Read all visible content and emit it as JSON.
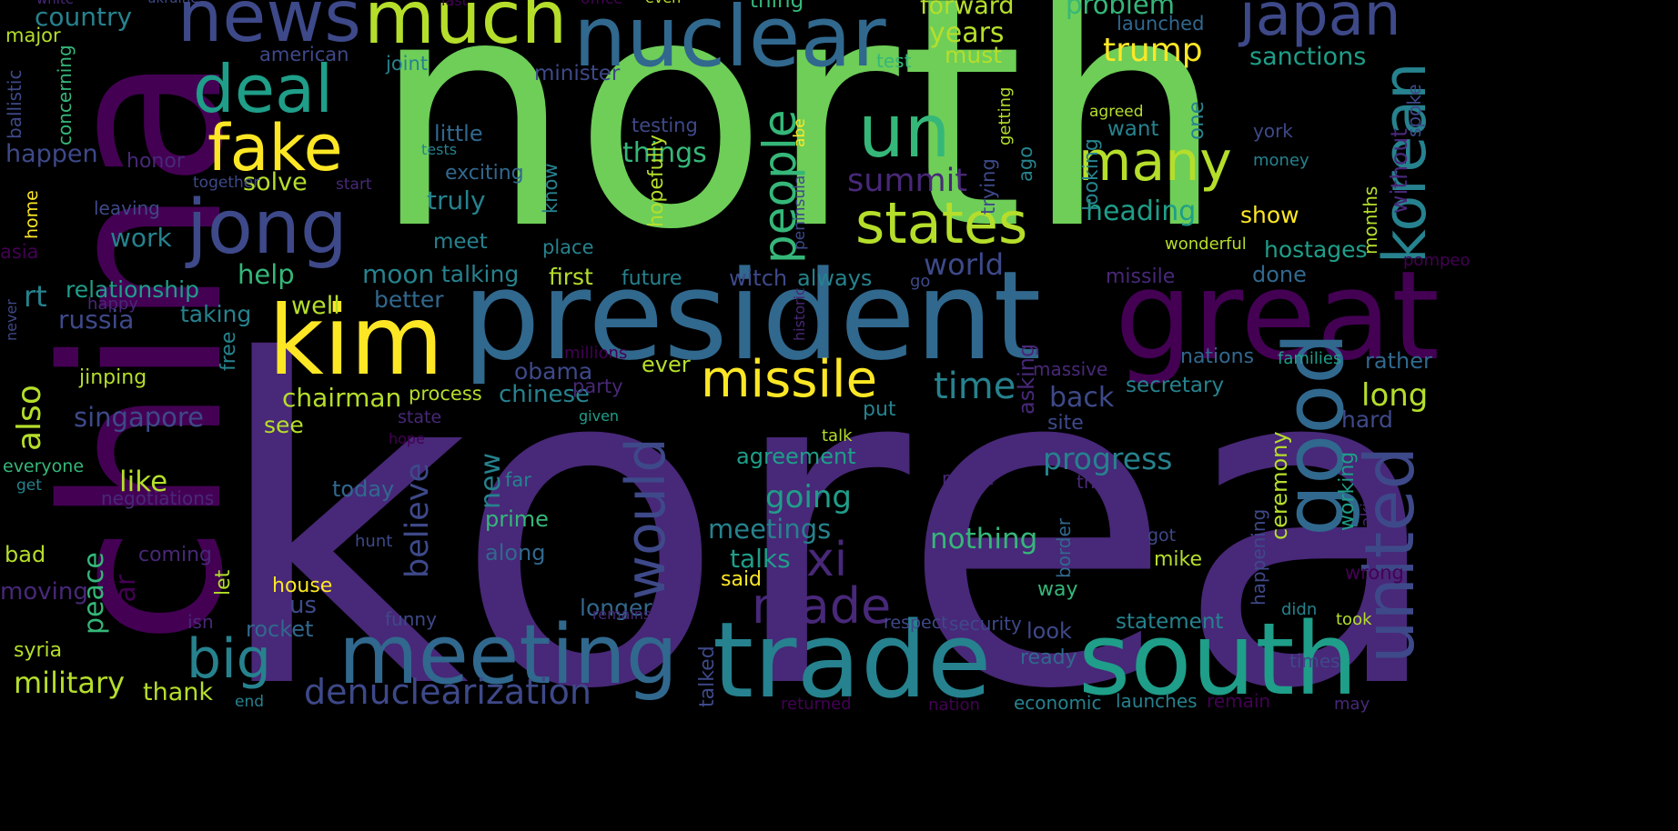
{
  "palette": [
    "#440154",
    "#482878",
    "#3e4989",
    "#31688e",
    "#26828e",
    "#1f9e89",
    "#35b779",
    "#6ece58",
    "#b5de2b",
    "#fde725"
  ],
  "words": [
    {
      "text": "korea",
      "color": "#482878"
    },
    {
      "text": "north",
      "color": "#6ece58"
    },
    {
      "text": "china",
      "color": "#440154"
    },
    {
      "text": "president",
      "color": "#31688e"
    },
    {
      "text": "great",
      "color": "#440154"
    },
    {
      "text": "trade",
      "color": "#26828e"
    },
    {
      "text": "south",
      "color": "#1f9e89"
    },
    {
      "text": "meeting",
      "color": "#31688e"
    },
    {
      "text": "nuclear",
      "color": "#31688e"
    },
    {
      "text": "news",
      "color": "#3e4989"
    },
    {
      "text": "much",
      "color": "#b5de2b"
    },
    {
      "text": "kim",
      "color": "#fde725"
    },
    {
      "text": "jong",
      "color": "#3e4989"
    },
    {
      "text": "deal",
      "color": "#1f9e89"
    },
    {
      "text": "fake",
      "color": "#fde725"
    },
    {
      "text": "un",
      "color": "#35b779"
    },
    {
      "text": "states",
      "color": "#b5de2b"
    },
    {
      "text": "many",
      "color": "#b5de2b"
    },
    {
      "text": "missile",
      "color": "#fde725"
    },
    {
      "text": "good",
      "color": "#31688e"
    },
    {
      "text": "united",
      "color": "#3e4989"
    },
    {
      "text": "korean",
      "color": "#26828e"
    },
    {
      "text": "japan",
      "color": "#3e4989"
    },
    {
      "text": "would",
      "color": "#3e4989"
    },
    {
      "text": "people",
      "color": "#35b779"
    },
    {
      "text": "big",
      "color": "#26828e"
    },
    {
      "text": "made",
      "color": "#482878"
    },
    {
      "text": "xi",
      "color": "#482878"
    },
    {
      "text": "denuclearization",
      "color": "#3e4989"
    },
    {
      "text": "military",
      "color": "#b5de2b"
    },
    {
      "text": "time",
      "color": "#26828e"
    },
    {
      "text": "chairman",
      "color": "#b5de2b"
    },
    {
      "text": "progress",
      "color": "#26828e"
    },
    {
      "text": "summit",
      "color": "#482878"
    },
    {
      "text": "singapore",
      "color": "#3e4989"
    },
    {
      "text": "trump",
      "color": "#fde725"
    },
    {
      "text": "heading",
      "color": "#1f9e89"
    },
    {
      "text": "world",
      "color": "#3e4989"
    },
    {
      "text": "back",
      "color": "#3e4989"
    },
    {
      "text": "long",
      "color": "#b5de2b"
    },
    {
      "text": "going",
      "color": "#1f9e89"
    },
    {
      "text": "meetings",
      "color": "#26828e"
    },
    {
      "text": "nothing",
      "color": "#35b779"
    },
    {
      "text": "talks",
      "color": "#1f9e89"
    },
    {
      "text": "country",
      "color": "#26828e"
    },
    {
      "text": "years",
      "color": "#b5de2b"
    },
    {
      "text": "forward",
      "color": "#b5de2b"
    },
    {
      "text": "problem",
      "color": "#35b779"
    },
    {
      "text": "sanctions",
      "color": "#1f9e89"
    },
    {
      "text": "things",
      "color": "#35b779"
    },
    {
      "text": "solve",
      "color": "#b5de2b"
    },
    {
      "text": "truly",
      "color": "#26828e"
    },
    {
      "text": "work",
      "color": "#26828e"
    },
    {
      "text": "help",
      "color": "#35b779"
    },
    {
      "text": "rt",
      "color": "#26828e"
    },
    {
      "text": "relationship",
      "color": "#1f9e89"
    },
    {
      "text": "russia",
      "color": "#3e4989"
    },
    {
      "text": "moon",
      "color": "#26828e"
    },
    {
      "text": "talking",
      "color": "#26828e"
    },
    {
      "text": "first",
      "color": "#b5de2b"
    },
    {
      "text": "future",
      "color": "#26828e"
    },
    {
      "text": "witch",
      "color": "#3e4989"
    },
    {
      "text": "always",
      "color": "#26828e"
    },
    {
      "text": "better",
      "color": "#31688e"
    },
    {
      "text": "taking",
      "color": "#26828e"
    },
    {
      "text": "well",
      "color": "#b5de2b"
    },
    {
      "text": "obama",
      "color": "#3e4989"
    },
    {
      "text": "ever",
      "color": "#b5de2b"
    },
    {
      "text": "chinese",
      "color": "#26828e"
    },
    {
      "text": "process",
      "color": "#b5de2b"
    },
    {
      "text": "jinping",
      "color": "#b5de2b"
    },
    {
      "text": "see",
      "color": "#b5de2b"
    },
    {
      "text": "also",
      "color": "#b5de2b"
    },
    {
      "text": "like",
      "color": "#b5de2b"
    },
    {
      "text": "happen",
      "color": "#3e4989"
    },
    {
      "text": "honor",
      "color": "#482878"
    },
    {
      "text": "agreement",
      "color": "#1f9e89"
    },
    {
      "text": "secretary",
      "color": "#26828e"
    },
    {
      "text": "hard",
      "color": "#3e4989"
    },
    {
      "text": "peace",
      "color": "#35b779"
    },
    {
      "text": "rocket",
      "color": "#31688e"
    },
    {
      "text": "thank",
      "color": "#b5de2b"
    },
    {
      "text": "war",
      "color": "#440154"
    },
    {
      "text": "us",
      "color": "#3e4989"
    },
    {
      "text": "longer",
      "color": "#31688e"
    },
    {
      "text": "new",
      "color": "#26828e"
    },
    {
      "text": "today",
      "color": "#31688e"
    },
    {
      "text": "prime",
      "color": "#35b779"
    },
    {
      "text": "along",
      "color": "#31688e"
    },
    {
      "text": "believe",
      "color": "#3e4989"
    },
    {
      "text": "house",
      "color": "#fde725"
    },
    {
      "text": "said",
      "color": "#fde725"
    },
    {
      "text": "way",
      "color": "#35b779"
    },
    {
      "text": "look",
      "color": "#3e4989"
    },
    {
      "text": "statement",
      "color": "#26828e"
    },
    {
      "text": "ready",
      "color": "#31688e"
    },
    {
      "text": "launches",
      "color": "#26828e"
    },
    {
      "text": "economic",
      "color": "#26828e"
    },
    {
      "text": "mike",
      "color": "#b5de2b"
    },
    {
      "text": "ceremony",
      "color": "#b5de2b"
    },
    {
      "text": "working",
      "color": "#1f9e89"
    },
    {
      "text": "hostages",
      "color": "#1f9e89"
    },
    {
      "text": "done",
      "color": "#31688e"
    },
    {
      "text": "nations",
      "color": "#31688e"
    },
    {
      "text": "families",
      "color": "#1f9e89"
    },
    {
      "text": "rather",
      "color": "#31688e"
    },
    {
      "text": "missile",
      "color": "#482878"
    },
    {
      "text": "wonderful",
      "color": "#b5de2b"
    },
    {
      "text": "show",
      "color": "#fde725"
    },
    {
      "text": "york",
      "color": "#3e4989"
    },
    {
      "text": "money",
      "color": "#26828e"
    },
    {
      "text": "months",
      "color": "#b5de2b"
    },
    {
      "text": "without",
      "color": "#482878"
    },
    {
      "text": "spoke",
      "color": "#3e4989"
    },
    {
      "text": "want",
      "color": "#26828e"
    },
    {
      "text": "one",
      "color": "#26828e"
    },
    {
      "text": "agreed",
      "color": "#b5de2b"
    },
    {
      "text": "launched",
      "color": "#31688e"
    },
    {
      "text": "must",
      "color": "#b5de2b"
    },
    {
      "text": "test",
      "color": "#35b779"
    },
    {
      "text": "thing",
      "color": "#35b779"
    },
    {
      "text": "minister",
      "color": "#3e4989"
    },
    {
      "text": "joint",
      "color": "#26828e"
    },
    {
      "text": "american",
      "color": "#3e4989"
    },
    {
      "text": "major",
      "color": "#b5de2b"
    },
    {
      "text": "concerning",
      "color": "#35b779"
    },
    {
      "text": "ballistic",
      "color": "#3e4989"
    },
    {
      "text": "testing",
      "color": "#3e4989"
    },
    {
      "text": "little",
      "color": "#31688e"
    },
    {
      "text": "tests",
      "color": "#26828e"
    },
    {
      "text": "exciting",
      "color": "#31688e"
    },
    {
      "text": "know",
      "color": "#26828e"
    },
    {
      "text": "hopefully",
      "color": "#b5de2b"
    },
    {
      "text": "meet",
      "color": "#26828e"
    },
    {
      "text": "place",
      "color": "#26828e"
    },
    {
      "text": "abe",
      "color": "#fde725"
    },
    {
      "text": "peninsula",
      "color": "#3e4989"
    },
    {
      "text": "historic",
      "color": "#482878"
    },
    {
      "text": "trying",
      "color": "#3e4989"
    },
    {
      "text": "getting",
      "color": "#b5de2b"
    },
    {
      "text": "ago",
      "color": "#26828e"
    },
    {
      "text": "looking",
      "color": "#26828e"
    },
    {
      "text": "go",
      "color": "#3e4989"
    },
    {
      "text": "millions",
      "color": "#440154"
    },
    {
      "text": "party",
      "color": "#482878"
    },
    {
      "text": "massive",
      "color": "#482878"
    },
    {
      "text": "asking",
      "color": "#482878"
    },
    {
      "text": "put",
      "color": "#26828e"
    },
    {
      "text": "site",
      "color": "#3e4989"
    },
    {
      "text": "talk",
      "color": "#b5de2b"
    },
    {
      "text": "result",
      "color": "#482878"
    },
    {
      "text": "th",
      "color": "#482878"
    },
    {
      "text": "border",
      "color": "#31688e"
    },
    {
      "text": "happening",
      "color": "#3e4989"
    },
    {
      "text": "got",
      "color": "#3e4989"
    },
    {
      "text": "making",
      "color": "#482878"
    },
    {
      "text": "wrong",
      "color": "#440154"
    },
    {
      "text": "didn",
      "color": "#26828e"
    },
    {
      "text": "took",
      "color": "#b5de2b"
    },
    {
      "text": "times",
      "color": "#3e4989"
    },
    {
      "text": "may",
      "color": "#482878"
    },
    {
      "text": "remain",
      "color": "#440154"
    },
    {
      "text": "nation",
      "color": "#440154"
    },
    {
      "text": "returned",
      "color": "#440154"
    },
    {
      "text": "talked",
      "color": "#3e4989"
    },
    {
      "text": "security",
      "color": "#3e4989"
    },
    {
      "text": "respect",
      "color": "#3e4989"
    },
    {
      "text": "funny",
      "color": "#3e4989"
    },
    {
      "text": "remains",
      "color": "#482878"
    },
    {
      "text": "isn",
      "color": "#482878"
    },
    {
      "text": "syria",
      "color": "#b5de2b"
    },
    {
      "text": "end",
      "color": "#26828e"
    },
    {
      "text": "moving",
      "color": "#482878"
    },
    {
      "text": "bad",
      "color": "#b5de2b"
    },
    {
      "text": "coming",
      "color": "#482878"
    },
    {
      "text": "hunt",
      "color": "#3e4989"
    },
    {
      "text": "let",
      "color": "#b5de2b"
    },
    {
      "text": "negotiations",
      "color": "#482878"
    },
    {
      "text": "everyone",
      "color": "#35b779"
    },
    {
      "text": "get",
      "color": "#26828e"
    },
    {
      "text": "free",
      "color": "#26828e"
    },
    {
      "text": "happy",
      "color": "#482878"
    },
    {
      "text": "far",
      "color": "#26828e"
    },
    {
      "text": "state",
      "color": "#482878"
    },
    {
      "text": "given",
      "color": "#1f9e89"
    },
    {
      "text": "hope",
      "color": "#440154"
    },
    {
      "text": "asia",
      "color": "#440154"
    },
    {
      "text": "home",
      "color": "#fde725"
    },
    {
      "text": "never",
      "color": "#3e4989"
    },
    {
      "text": "leaving",
      "color": "#3e4989"
    },
    {
      "text": "together",
      "color": "#3e4989"
    },
    {
      "text": "start",
      "color": "#482878"
    },
    {
      "text": "white",
      "color": "#482878"
    },
    {
      "text": "ukraine",
      "color": "#3e4989"
    },
    {
      "text": "last",
      "color": "#440154"
    },
    {
      "text": "office",
      "color": "#440154"
    },
    {
      "text": "even",
      "color": "#b5de2b"
    },
    {
      "text": "pompeo",
      "color": "#440154"
    },
    {
      "text": "midd",
      "color": "#b5de2b"
    }
  ]
}
